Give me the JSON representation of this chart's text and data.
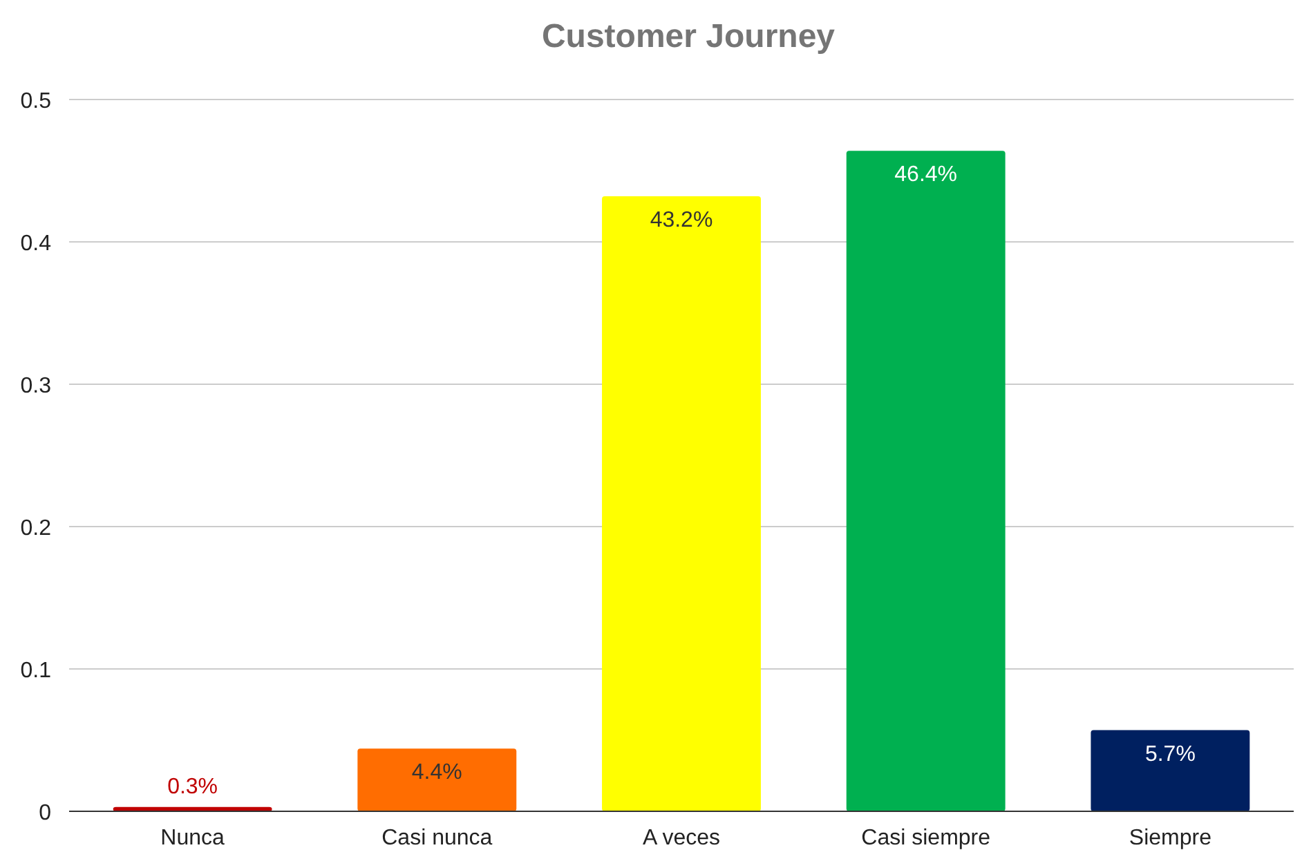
{
  "chart_data": {
    "type": "bar",
    "title": "Customer Journey",
    "categories": [
      "Nunca",
      "Casi nunca",
      "A veces",
      "Casi siempre",
      "Siempre"
    ],
    "values": [
      0.003,
      0.044,
      0.432,
      0.464,
      0.057
    ],
    "colors": [
      "#c00000",
      "#ff6d01",
      "#ffff00",
      "#00b050",
      "#002060"
    ],
    "value_labels": [
      "0.3%",
      "4.4%",
      "43.2%",
      "46.4%",
      "5.7%"
    ],
    "ylim": [
      0,
      0.5
    ],
    "yticks": [
      0,
      0.1,
      0.2,
      0.3,
      0.4,
      0.5
    ],
    "grid": "y"
  }
}
